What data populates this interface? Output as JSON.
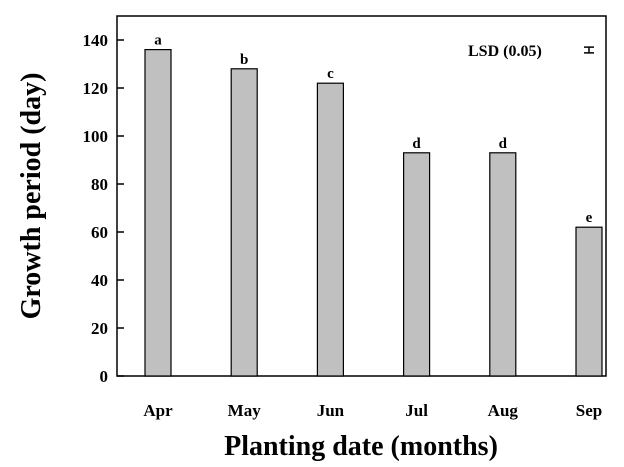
{
  "chart_data": {
    "type": "bar",
    "categories": [
      "Apr",
      "May",
      "Jun",
      "Jul",
      "Aug",
      "Sep"
    ],
    "values": [
      136,
      128,
      122,
      93,
      93,
      62
    ],
    "significance_letters": [
      "a",
      "b",
      "c",
      "d",
      "d",
      "e"
    ],
    "xlabel": "Planting date (months)",
    "ylabel": "Growth period (day)",
    "ylim": [
      0,
      150
    ],
    "yticks": [
      0,
      20,
      40,
      60,
      80,
      100,
      120,
      140
    ],
    "legend": {
      "label": "LSD (0.05)",
      "placement": "top-right",
      "error_bar_halfwidth": 1.2
    },
    "grid": false,
    "colors": {
      "bar_fill": "#c0c0c0",
      "bar_stroke": "#000000"
    }
  }
}
